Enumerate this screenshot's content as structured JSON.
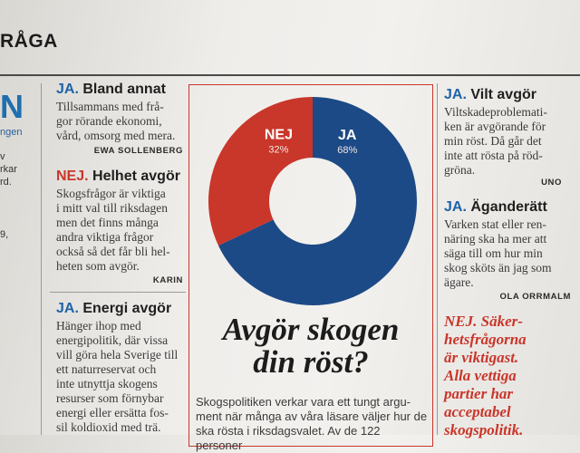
{
  "header": {
    "title": "RÅGA"
  },
  "left_edge": {
    "big_letter": "N",
    "sub": "ngen",
    "lines": [
      "v",
      "rkar",
      "rd.",
      "9,"
    ]
  },
  "col1": {
    "items": [
      {
        "verdict": "JA.",
        "heading": "Bland annat",
        "body": [
          "Tillsammans med frå-",
          "gor rörande ekonomi,",
          "vård, omsorg med mera."
        ],
        "signature": "EWA SOLLENBERG"
      },
      {
        "verdict": "NEJ.",
        "heading": "Helhet avgör",
        "body": [
          "Skogsfrågor är viktiga",
          "i mitt val till riksdagen",
          "men det finns många",
          "andra viktiga frågor",
          "också så det får bli hel-",
          "heten som avgör."
        ],
        "signature": "KARIN"
      },
      {
        "verdict": "JA.",
        "heading": "Energi avgör",
        "body": [
          "Hänger ihop med",
          "energipolitik, där vissa",
          "vill göra hela Sverige till",
          "ett naturreservat och",
          "inte utnyttja skogens",
          "resurser som förnybar",
          "energi eller ersätta fos-",
          "sil koldioxid med trä."
        ]
      }
    ]
  },
  "chart_data": {
    "type": "pie",
    "donut": true,
    "categories": [
      "NEJ",
      "JA"
    ],
    "values": [
      32,
      68
    ],
    "labels": [
      "32%",
      "68%"
    ],
    "colors": [
      "#c9362a",
      "#1c4a86"
    ]
  },
  "main": {
    "title_line1": "Avgör skogen",
    "title_line2": "din röst?",
    "lede": [
      "Skogspolitiken verkar vara ett tungt argu-",
      "ment när många av våra läsare väljer hur de",
      "ska rösta i riksdagsvalet. Av de 122 personer"
    ]
  },
  "col3": {
    "items": [
      {
        "verdict": "JA.",
        "heading": "Vilt avgör",
        "body": [
          "Viltskadeproblemati-",
          "ken är avgörande för",
          "min röst. Då går det",
          "inte att rösta på röd-",
          "gröna."
        ],
        "signature": "UNO"
      },
      {
        "verdict": "JA.",
        "heading": "Äganderätt",
        "body": [
          "Varken stat eller ren-",
          "näring ska ha mer att",
          "säga till om hur min",
          "skog sköts än jag som",
          "ägare."
        ],
        "signature": "OLA ORRMALM"
      }
    ],
    "red_quote": [
      "NEJ. Säker-",
      "hetsfrågorna",
      "är viktigast.",
      "Alla vettiga",
      "partier har",
      "acceptabel",
      "skogspolitik."
    ]
  },
  "colors": {
    "ja_blue": "#1f63a8",
    "nej_red": "#c9362a",
    "donut_blue": "#1c4a86"
  }
}
